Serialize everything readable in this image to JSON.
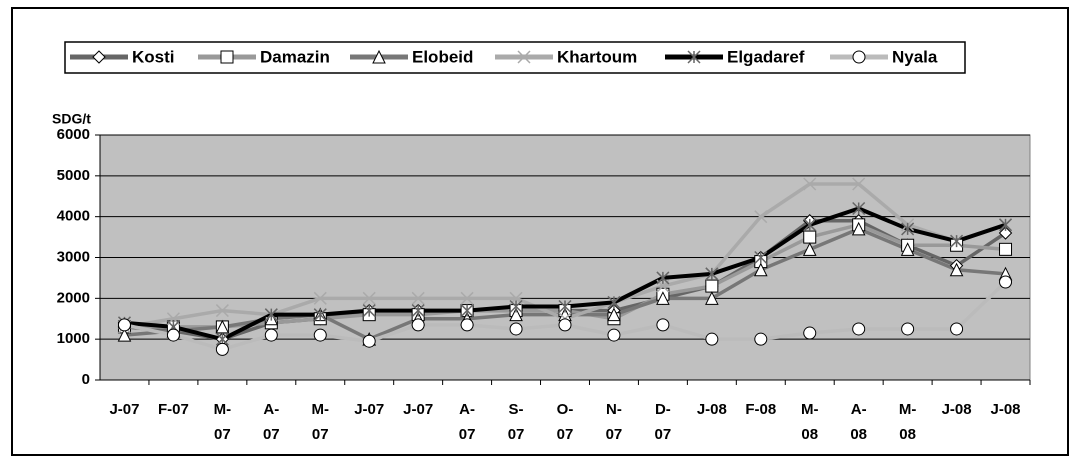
{
  "chart_data": {
    "type": "line",
    "y_label": "SDG/t",
    "categories": [
      "J-07",
      "F-07",
      "M-\n07",
      "A-\n07",
      "M-\n07",
      "J-07",
      "J-07",
      "A-\n07",
      "S-\n07",
      "O-\n07",
      "N-\n07",
      "D-\n07",
      "J-08",
      "F-08",
      "M-\n08",
      "A-\n08",
      "M-\n08",
      "J-08",
      "J-08"
    ],
    "series": [
      {
        "name": "Kosti",
        "color": "#666666",
        "marker": "diamond",
        "values": [
          1300,
          1200,
          1000,
          1400,
          1500,
          1700,
          1700,
          1700,
          1700,
          1700,
          1700,
          2000,
          2300,
          3000,
          3900,
          3900,
          3300,
          2800,
          3600
        ]
      },
      {
        "name": "Damazin",
        "color": "#999999",
        "marker": "square",
        "values": [
          1300,
          1300,
          1300,
          1400,
          1500,
          1600,
          1600,
          1700,
          1700,
          1700,
          1500,
          2100,
          2300,
          2900,
          3500,
          3800,
          3300,
          3300,
          3200
        ]
      },
      {
        "name": "Elobeid",
        "color": "#777777",
        "marker": "triangle",
        "values": [
          1100,
          1200,
          1300,
          1500,
          1600,
          1000,
          1500,
          1500,
          1600,
          1600,
          1600,
          2000,
          2000,
          2700,
          3200,
          3700,
          3200,
          2700,
          2600
        ]
      },
      {
        "name": "Khartoum",
        "color": "#aaaaaa",
        "marker": "x",
        "values": [
          1300,
          1500,
          1700,
          1600,
          2000,
          2000,
          2000,
          2000,
          2000,
          1500,
          1900,
          2300,
          2600,
          4000,
          4800,
          4800,
          3800,
          3400,
          3800
        ]
      },
      {
        "name": "Elgadaref",
        "color": "#000000",
        "marker": "star",
        "values": [
          1400,
          1300,
          1000,
          1600,
          1600,
          1700,
          1700,
          1700,
          1800,
          1800,
          1900,
          2500,
          2600,
          3000,
          3800,
          4200,
          3700,
          3400,
          3800
        ]
      },
      {
        "name": "Nyala",
        "color": "#bbbbbb",
        "marker": "circle",
        "values": [
          1350,
          1100,
          750,
          1100,
          1100,
          950,
          1350,
          1350,
          1250,
          1350,
          1100,
          1350,
          1000,
          1000,
          1150,
          1250,
          1250,
          1250,
          2400
        ]
      }
    ],
    "ylim": [
      0,
      6000
    ],
    "yticks": [
      0,
      1000,
      2000,
      3000,
      4000,
      5000,
      6000
    ],
    "grid": true,
    "legend": "top",
    "plot_background": "#c0c0c0"
  }
}
